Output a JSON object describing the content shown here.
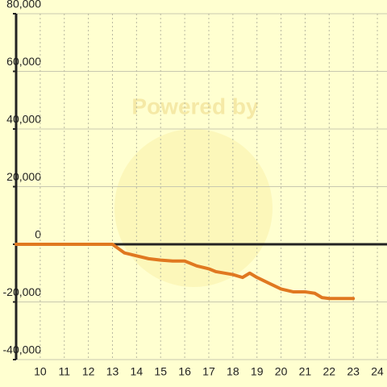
{
  "chart_data": {
    "type": "line",
    "watermark": "Powered by",
    "x": [
      9,
      13,
      13.5,
      14,
      14.5,
      15,
      15.5,
      16,
      16.5,
      17,
      17.3,
      18,
      18.4,
      18.7,
      19,
      19.5,
      20,
      20.5,
      21,
      21.4,
      21.7,
      22,
      23
    ],
    "series": [
      {
        "color": "#e07820",
        "values": [
          0,
          0,
          -3000,
          -4000,
          -5000,
          -5500,
          -5800,
          -5800,
          -7500,
          -8500,
          -9500,
          -10500,
          -11500,
          -10000,
          -11500,
          -13500,
          -15500,
          -16500,
          -16500,
          -17000,
          -18500,
          -18800,
          -18800
        ]
      }
    ],
    "xlim": [
      9,
      24.4
    ],
    "xticks": [
      10,
      11,
      12,
      13,
      14,
      15,
      16,
      17,
      18,
      19,
      20,
      21,
      22,
      23,
      24
    ],
    "ylim": [
      -40000,
      80000
    ],
    "yticks": [
      {
        "value": -40000,
        "label": "-40,000"
      },
      {
        "value": -20000,
        "label": "-20,000"
      },
      0,
      {
        "value": 20000,
        "label": "20,000"
      },
      {
        "value": 40000,
        "label": "40,000"
      },
      {
        "value": 60000,
        "label": "60,000"
      },
      {
        "value": 80000,
        "label": "80,000"
      }
    ],
    "grid": true
  }
}
